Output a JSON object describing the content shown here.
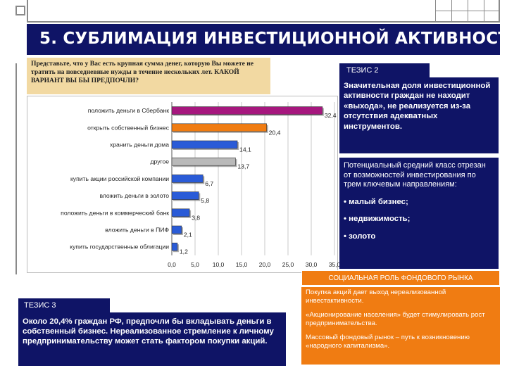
{
  "title": "5. СУБЛИМАЦИЯ ИНВЕСТИЦИОННОЙ АКТИВНОСТИ",
  "question": "Представьте, что у Вас есть крупная сумма денег, которую Вы можете не тратить на повседневные нужды в течение нескольких лет. КАКОЙ ВАРИАНТ ВЫ БЫ ПРЕДПОЧЛИ?",
  "thesis2": {
    "label": "ТЕЗИС 2",
    "body": "Значительная доля инвестиционной активности граждан не находит «выхода», не реализуется из-за отсутствия адекватных инструментов.",
    "sub": "Потенциальный средний класс отрезан от возможностей инвестирования по трем ключевым направлениям:",
    "bullets": [
      "• малый бизнес;",
      "• недвижимость;",
      "• золото"
    ]
  },
  "thesis3": {
    "label": "ТЕЗИС 3",
    "body": "Около 20,4% граждан РФ, предпочли бы вкладывать деньги в собственный бизнес. Нереализованное стремление к личному предпринимательству может стать фактором покупки акций."
  },
  "social": {
    "title": "СОЦИАЛЬНАЯ РОЛЬ ФОНДОВОГО РЫНКА",
    "items": [
      "Покупка акций дает выход нереализованной инвестактивности.",
      "«Акционирование населения» будет стимулировать рост предпринимательства.",
      "Массовый фондовый рынок – путь к возникновению «народного капитализма»."
    ]
  },
  "colors": {
    "navy": "#0f1466",
    "orange": "#f07c12",
    "question_bg": "#f2d9a2",
    "bar_magenta": "#a6177e",
    "bar_orange": "#f07c12",
    "bar_blue": "#2a5bd7",
    "bar_gray": "#b9b9b9"
  },
  "chart_data": {
    "type": "bar",
    "orientation": "horizontal",
    "categories": [
      "положить деньги в Сбербанк",
      "открыть собственный бизнес",
      "хранить деньги дома",
      "другое",
      "купить акции российской компании",
      "вложить деньги в золото",
      "положить деньги в коммерческий банк",
      "вложить деньги в ПИФ",
      "купить государственные облигации"
    ],
    "values": [
      32.4,
      20.4,
      14.1,
      13.7,
      6.7,
      5.8,
      3.8,
      2.1,
      1.2
    ],
    "value_labels": [
      "32,4",
      "20,4",
      "14,1",
      "13,7",
      "6,7",
      "5,8",
      "3,8",
      "2,1",
      "1,2"
    ],
    "bar_colors": [
      "#a6177e",
      "#f07c12",
      "#2a5bd7",
      "#b9b9b9",
      "#2a5bd7",
      "#2a5bd7",
      "#2a5bd7",
      "#2a5bd7",
      "#2a5bd7"
    ],
    "xlim": [
      0,
      35
    ],
    "xticks": [
      "0,0",
      "5,0",
      "10,0",
      "15,0",
      "20,0",
      "25,0",
      "30,0",
      "35,0"
    ],
    "grid": true
  }
}
